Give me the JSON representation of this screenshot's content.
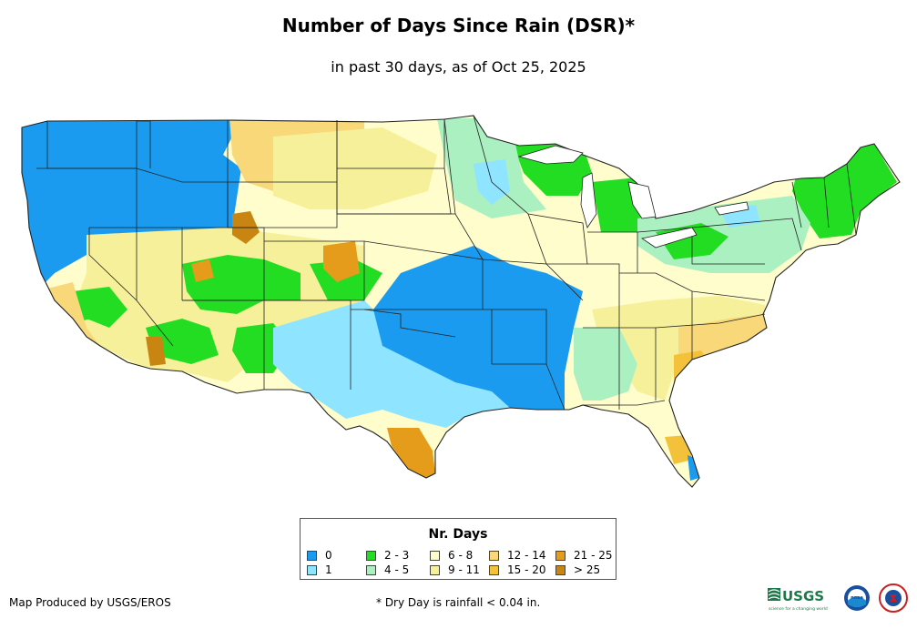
{
  "title": "Number of Days Since Rain (DSR)*",
  "subtitle": "in past 30 days, as of Oct 25, 2025",
  "legend": {
    "title": "Nr. Days",
    "items": [
      {
        "label": "0",
        "color": "#1a9bf0"
      },
      {
        "label": "1",
        "color": "#8fe4ff"
      },
      {
        "label": "2 - 3",
        "color": "#22dd22"
      },
      {
        "label": "4 - 5",
        "color": "#aaf0c0"
      },
      {
        "label": "6 - 8",
        "color": "#fffdcc"
      },
      {
        "label": "9 - 11",
        "color": "#f7f09a"
      },
      {
        "label": "12 - 14",
        "color": "#f8d878"
      },
      {
        "label": "15 - 20",
        "color": "#f3c23a"
      },
      {
        "label": "21 - 25",
        "color": "#e59c1a"
      },
      {
        "label": "> 25",
        "color": "#c98512"
      }
    ]
  },
  "credit": "Map Produced by USGS/EROS",
  "footnote": "* Dry Day is rainfall < 0.04 in.",
  "logos": {
    "usgs_text": "USGS",
    "usgs_tagline": "science for a changing world",
    "noaa_text": "noaa",
    "nws_icon": "nws-seal-icon"
  }
}
